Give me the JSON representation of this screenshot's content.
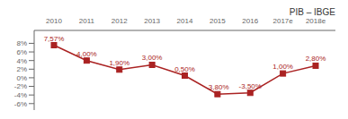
{
  "chart_data": {
    "type": "line",
    "title": "PIB – IBGE",
    "categories": [
      "2010",
      "2011",
      "2012",
      "2013",
      "2014",
      "2015",
      "2016",
      "2017e",
      "2018e"
    ],
    "values": [
      7.57,
      4.0,
      1.9,
      3.0,
      0.5,
      -3.8,
      -3.5,
      1.0,
      2.8
    ],
    "value_labels": [
      "7,57%",
      "4,00%",
      "1,90%",
      "3,00%",
      "0,50%",
      "-3,80%",
      "-3,50%",
      "1,00%",
      "2,80%"
    ],
    "data_labels": true,
    "color": "#aa2222",
    "marker": "square",
    "ylim": [
      -7.5,
      11.0
    ],
    "yticks": [
      {
        "value": -6,
        "label": "-6%"
      },
      {
        "value": -4,
        "label": "-4%"
      },
      {
        "value": -2,
        "label": "-2%"
      },
      {
        "value": 0,
        "label": "0%"
      },
      {
        "value": 2,
        "label": "2%"
      },
      {
        "value": 4,
        "label": "4%"
      },
      {
        "value": 6,
        "label": "6%"
      },
      {
        "value": 8,
        "label": "8%"
      }
    ]
  }
}
